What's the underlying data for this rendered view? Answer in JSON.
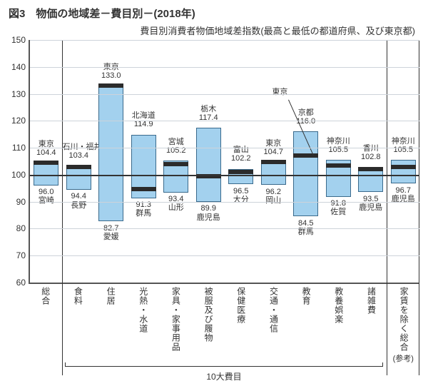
{
  "title": "図3　物価の地域差－費目別－(2018年)",
  "subtitle": "費目別消費者物価地域差指数(最高と最低の都道府県、及び東京都)",
  "chart": {
    "type": "floating-bar",
    "ylim": [
      60,
      150
    ],
    "yticks": [
      60,
      70,
      80,
      90,
      100,
      110,
      120,
      130,
      140,
      150
    ],
    "baseline": 100,
    "background_color": "#ffffff",
    "grid_color": "#cdd3da",
    "axis_color": "#555555",
    "bar_fill": "#a3d1ee",
    "bar_border": "#3a6a8c",
    "tokyo_marker_color": "#2b2b2b",
    "label_fontsize": 12,
    "value_fontsize": 11,
    "categories": [
      {
        "label": "総合",
        "high": 104.4,
        "low": 96.0,
        "high_pref": "東京",
        "low_pref": "宮崎",
        "tokyo": 104.4
      },
      {
        "label": "食料",
        "high": 103.4,
        "low": 94.4,
        "high_pref": "石川・福井",
        "low_pref": "長野",
        "tokyo": 103.0
      },
      {
        "label": "住居",
        "high": 133.0,
        "low": 82.7,
        "high_pref": "東京",
        "low_pref": "愛媛",
        "tokyo": 133.0
      },
      {
        "label": "光熱・水道",
        "high": 114.9,
        "low": 91.3,
        "high_pref": "北海道",
        "low_pref": "群馬",
        "tokyo": 94.8
      },
      {
        "label": "家具・家事用品",
        "high": 105.2,
        "low": 93.4,
        "high_pref": "宮城",
        "low_pref": "山形",
        "tokyo": 104.0
      },
      {
        "label": "被服及び履物",
        "high": 117.4,
        "low": 89.9,
        "high_pref": "栃木",
        "low_pref": "鹿児島",
        "tokyo": 99.5
      },
      {
        "label": "保健医療",
        "high": 102.2,
        "low": 96.5,
        "high_pref": "富山",
        "low_pref": "大分",
        "tokyo": 101.0
      },
      {
        "label": "交通・通信",
        "high": 104.7,
        "low": 96.2,
        "high_pref": "東京",
        "low_pref": "岡山",
        "tokyo": 104.7
      },
      {
        "label": "教育",
        "high": 116.0,
        "low": 84.5,
        "high_pref": "京都",
        "low_pref": "群馬",
        "tokyo": 107.0,
        "tokyo_callout": "東京"
      },
      {
        "label": "教養娯楽",
        "high": 105.5,
        "low": 91.8,
        "high_pref": "神奈川",
        "low_pref": "佐賀",
        "tokyo": 103.5
      },
      {
        "label": "諸雑費",
        "high": 102.8,
        "low": 93.5,
        "high_pref": "香川",
        "low_pref": "鹿児島",
        "tokyo": 102.0
      },
      {
        "label": "家賃を除く総合",
        "high": 105.5,
        "low": 96.7,
        "high_pref": "神奈川",
        "low_pref": "鹿児島",
        "tokyo": 103.0,
        "sub": "(参考)"
      }
    ],
    "group_label": "10大費目",
    "group_start": 1,
    "group_end": 10
  }
}
